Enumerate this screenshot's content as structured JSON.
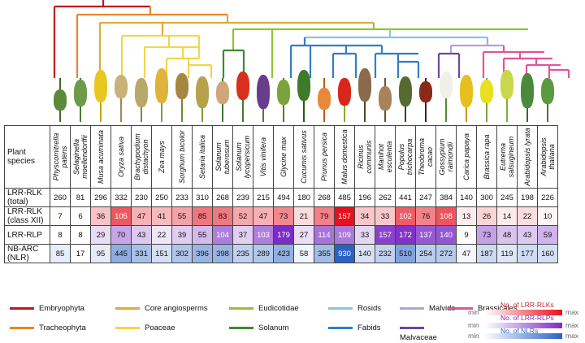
{
  "row_labels": {
    "species": "Plant species",
    "lrr_rlk_total": "LRR-RLK (total)",
    "lrr_rlk_xii": "LRR-RLK (class XII)",
    "lrr_rlp": "LRR-RLP",
    "nb_arc": "NB-ARC (NLR)"
  },
  "species": [
    "Physcomitrella patens",
    "Selaginella moellendorffii",
    "Musa acuminata",
    "Oryza sativa",
    "Brachypodium distachyon",
    "Zea mays",
    "Sorghum bicolor",
    "Setaria italica",
    "Solanum tuberosum",
    "Solanum lycopersicum",
    "Vitis vinifera",
    "Glycine max",
    "Cucumis sativus",
    "Prunus persica",
    "Malus domestica",
    "Ricinus communis",
    "Manihot esculenta",
    "Populus trichocarpa",
    "Theobroma cacao",
    "Gossypium raimondii",
    "Carica papaya",
    "Brassica rapa",
    "Eutrema salsugineum",
    "Arabidopsis lyrata",
    "Arabidopsis thaliana"
  ],
  "values": {
    "lrr_rlk_total": [
      "260",
      "81",
      "296",
      "332",
      "230",
      "250",
      "233",
      "310",
      "268",
      "239",
      "215",
      "494",
      "180",
      "268",
      "485",
      "196",
      "262",
      "441",
      "247",
      "384",
      "140",
      "300",
      "245",
      "198",
      "226"
    ],
    "lrr_rlk_xii": [
      "7",
      "6",
      "36",
      "105",
      "47",
      "41",
      "55",
      "85",
      "83",
      "52",
      "47",
      "73",
      "21",
      "79",
      "157",
      "34",
      "33",
      "102",
      "76",
      "108",
      "13",
      "26",
      "14",
      "22",
      "10"
    ],
    "lrr_rlp": [
      "8",
      "8",
      "29",
      "70",
      "43",
      "22",
      "39",
      "55",
      "104",
      "37",
      "103",
      "179",
      "27",
      "114",
      "109",
      "33",
      "157",
      "172",
      "137",
      "140",
      "9",
      "73",
      "48",
      "43",
      "59"
    ],
    "nb_arc": [
      "85",
      "17",
      "95",
      "445",
      "331",
      "151",
      "302",
      "396",
      "398",
      "235",
      "289",
      "423",
      "58",
      "355",
      "930",
      "140",
      "232",
      "510",
      "254",
      "272",
      "47",
      "187",
      "119",
      "177",
      "160"
    ]
  },
  "legend": [
    {
      "label": "Embryophyta",
      "color": "#c0181e"
    },
    {
      "label": "Tracheophyta",
      "color": "#e8862a"
    },
    {
      "label": "Core angiosperms",
      "color": "#e3a93a"
    },
    {
      "label": "Poaceae",
      "color": "#f1d64a"
    },
    {
      "label": "Eudicotidae",
      "color": "#93c234"
    },
    {
      "label": "Solanum",
      "color": "#3c8a33"
    },
    {
      "label": "Rosids",
      "color": "#8fc1e3"
    },
    {
      "label": "Fabids",
      "color": "#2f7fc1"
    },
    {
      "label": "Malvids",
      "color": "#b3a2d6"
    },
    {
      "label": "Malvaceae",
      "color": "#6d46a8"
    },
    {
      "label": "Brassicales",
      "color": "#e1549b"
    }
  ],
  "scales": [
    {
      "title": "No. of LRR-RLKs",
      "min": "min",
      "max": "max",
      "color": "#e8101c"
    },
    {
      "title": "No. of LRR-RLPs",
      "min": "min",
      "max": "max",
      "color": "#7b2cc6"
    },
    {
      "title": "No. of NLRs",
      "min": "min",
      "max": "max",
      "color": "#2a62c4"
    }
  ],
  "plant_icons": [
    "moss",
    "fern",
    "banana",
    "rice",
    "grass",
    "maize",
    "sorghum",
    "foxtail",
    "potato",
    "tomato",
    "grape",
    "soybean",
    "cucumber",
    "peach",
    "apple",
    "castor",
    "cassava",
    "poplar",
    "cacao",
    "cotton",
    "papaya",
    "turnip",
    "eutrema",
    "lyrata",
    "thaliana"
  ]
}
